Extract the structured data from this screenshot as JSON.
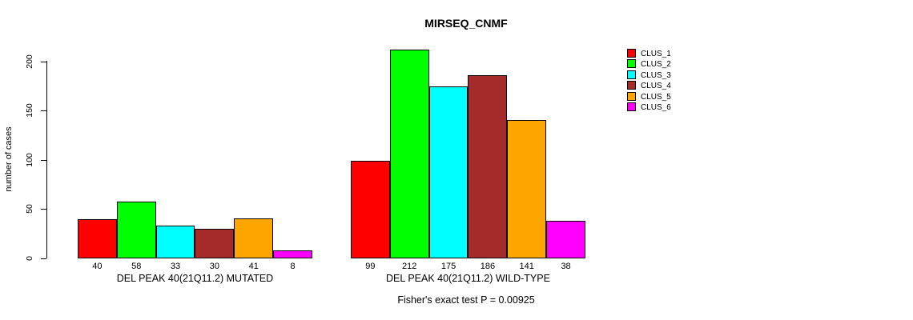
{
  "chart_data": {
    "type": "bar",
    "title": "MIRSEQ_CNMF",
    "ylabel": "number of cases",
    "caption": "Fisher's exact test P = 0.00925",
    "ylim": [
      0,
      200
    ],
    "yticks": [
      0,
      50,
      100,
      150,
      200
    ],
    "grid": false,
    "bar_value_labels_shown": true,
    "legend_position": "top-right",
    "categories": [
      "DEL PEAK 40(21Q11.2) MUTATED",
      "DEL PEAK 40(21Q11.2) WILD-TYPE"
    ],
    "series": [
      {
        "name": "CLUS_1",
        "color": "#FF0000",
        "values": [
          40,
          99
        ]
      },
      {
        "name": "CLUS_2",
        "color": "#00FF00",
        "values": [
          58,
          212
        ]
      },
      {
        "name": "CLUS_3",
        "color": "#00FFFF",
        "values": [
          33,
          175
        ]
      },
      {
        "name": "CLUS_4",
        "color": "#A52A2A",
        "values": [
          30,
          186
        ]
      },
      {
        "name": "CLUS_5",
        "color": "#FFA500",
        "values": [
          41,
          141
        ]
      },
      {
        "name": "CLUS_6",
        "color": "#FF00FF",
        "values": [
          8,
          38
        ]
      }
    ]
  }
}
